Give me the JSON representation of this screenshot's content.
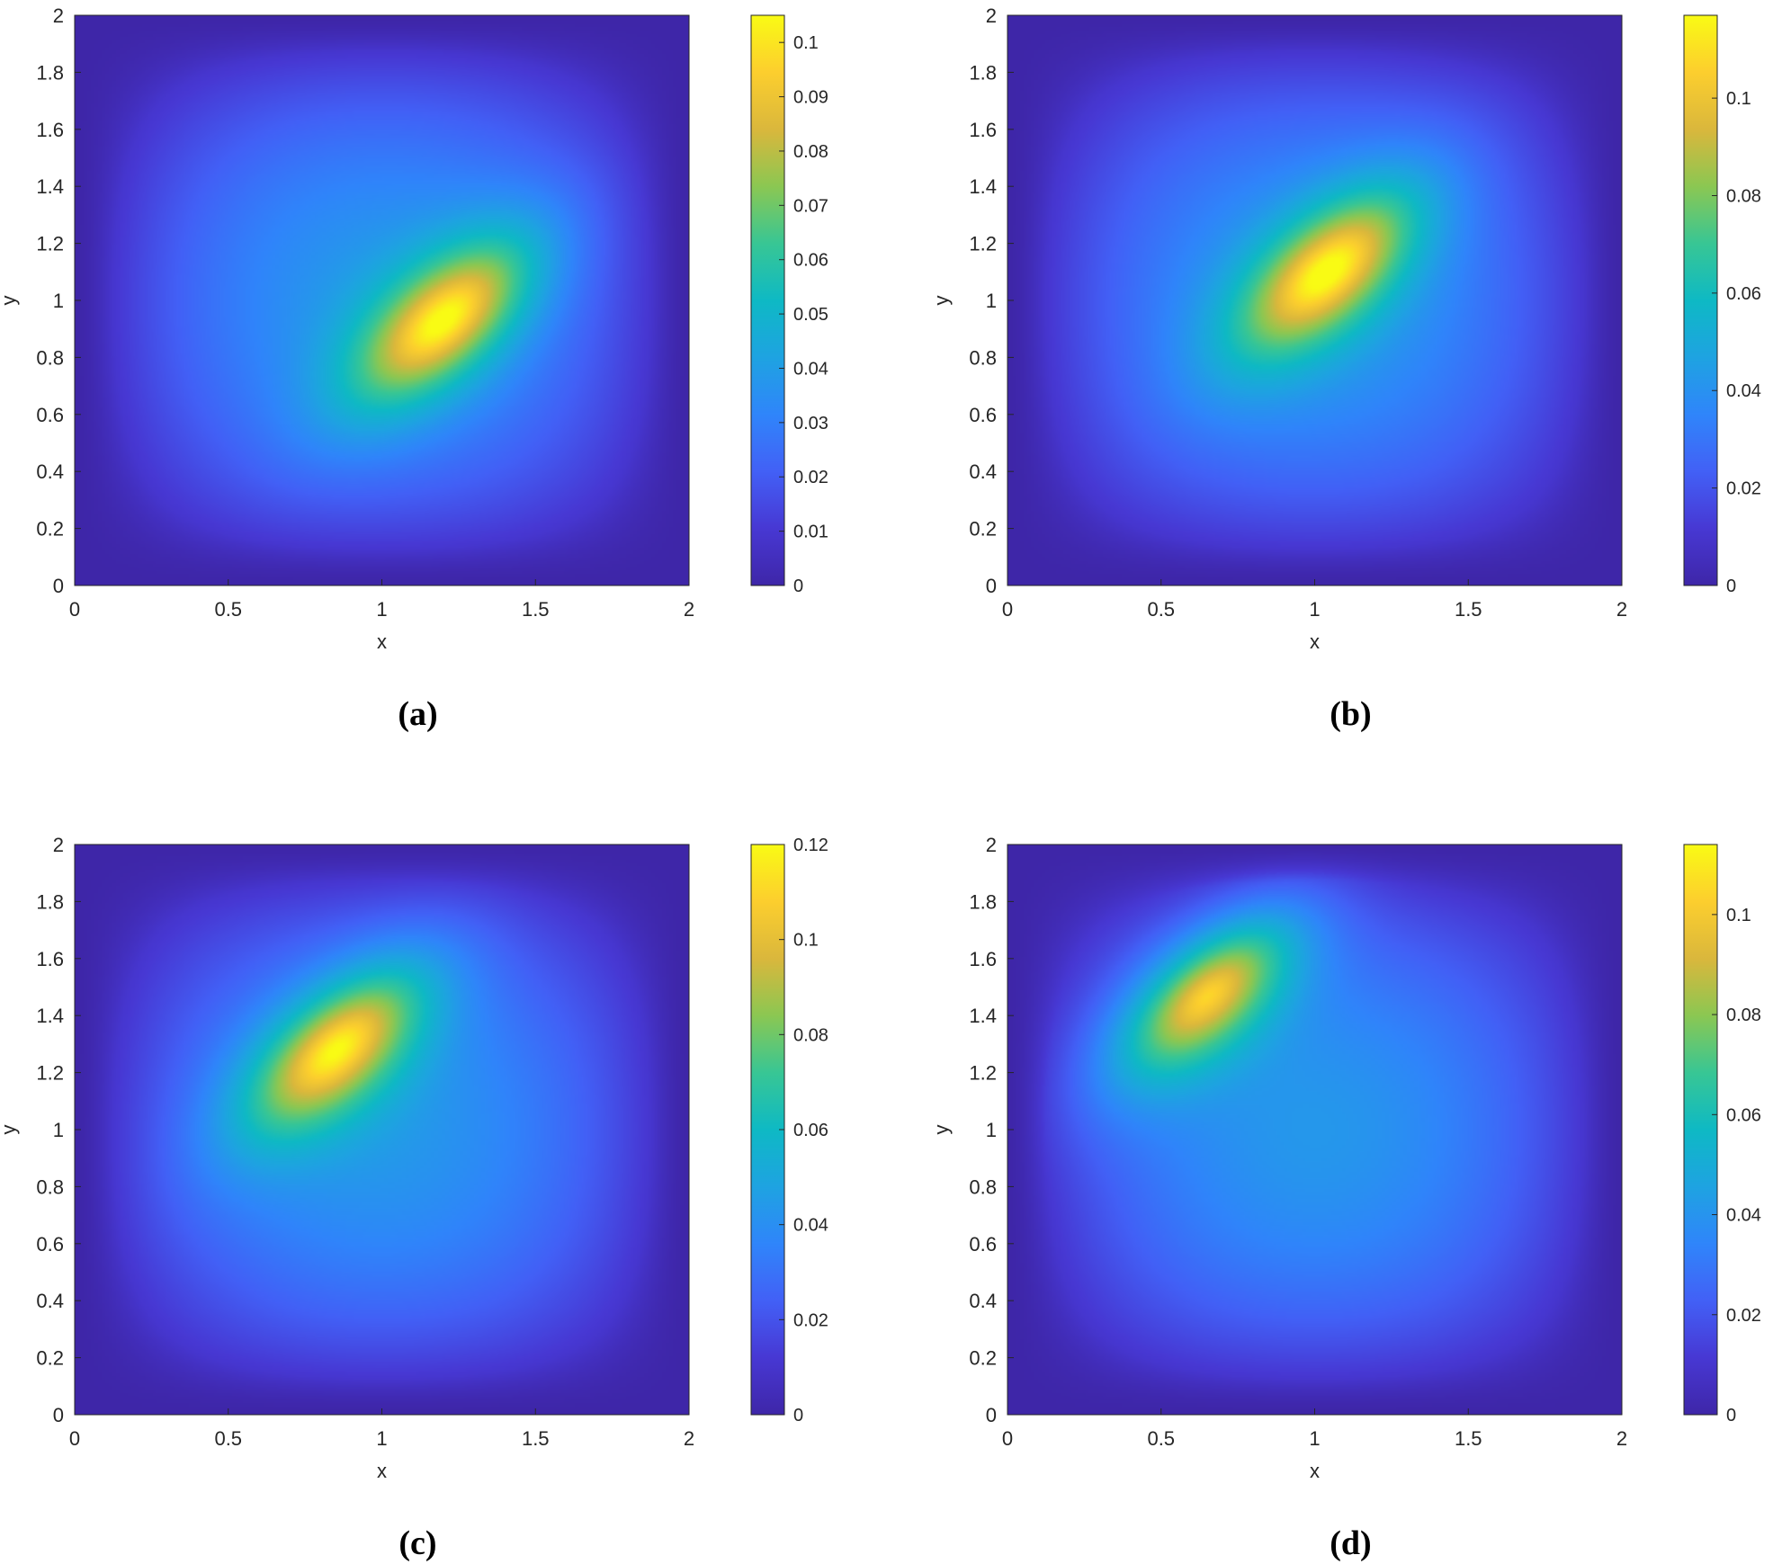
{
  "chart_data": [
    {
      "type": "heatmap",
      "caption": "(a)",
      "xlabel": "x",
      "ylabel": "y",
      "xlim": [
        0,
        2
      ],
      "ylim": [
        0,
        2
      ],
      "xticks": [
        "0",
        "0.5",
        "1",
        "1.5",
        "2"
      ],
      "yticks": [
        "0",
        "0.2",
        "0.4",
        "0.6",
        "0.8",
        "1",
        "1.2",
        "1.4",
        "1.6",
        "1.8",
        "2"
      ],
      "colormap": "parula",
      "colorbar": {
        "range": [
          0,
          0.105
        ],
        "ticks": [
          0,
          0.01,
          0.02,
          0.03,
          0.04,
          0.05,
          0.06,
          0.07,
          0.08,
          0.09,
          0.1
        ],
        "tick_labels": [
          "0",
          "0.01",
          "0.02",
          "0.03",
          "0.04",
          "0.05",
          "0.06",
          "0.07",
          "0.08",
          "0.09",
          "0.1"
        ]
      },
      "peak": {
        "x": 1.2,
        "y": 0.93,
        "value": 0.105
      }
    },
    {
      "type": "heatmap",
      "caption": "(b)",
      "xlabel": "x",
      "ylabel": "y",
      "xlim": [
        0,
        2
      ],
      "ylim": [
        0,
        2
      ],
      "xticks": [
        "0",
        "0.5",
        "1",
        "1.5",
        "2"
      ],
      "yticks": [
        "0",
        "0.2",
        "0.4",
        "0.6",
        "0.8",
        "1",
        "1.2",
        "1.4",
        "1.6",
        "1.8",
        "2"
      ],
      "colormap": "parula",
      "colorbar": {
        "range": [
          0,
          0.117
        ],
        "ticks": [
          0,
          0.02,
          0.04,
          0.06,
          0.08,
          0.1
        ],
        "tick_labels": [
          "0",
          "0.02",
          "0.04",
          "0.06",
          "0.08",
          "0.1"
        ]
      },
      "peak": {
        "x": 1.04,
        "y": 1.1,
        "value": 0.117
      }
    },
    {
      "type": "heatmap",
      "caption": "(c)",
      "xlabel": "x",
      "ylabel": "y",
      "xlim": [
        0,
        2
      ],
      "ylim": [
        0,
        2
      ],
      "xticks": [
        "0",
        "0.5",
        "1",
        "1.5",
        "2"
      ],
      "yticks": [
        "0",
        "0.2",
        "0.4",
        "0.6",
        "0.8",
        "1",
        "1.2",
        "1.4",
        "1.6",
        "1.8",
        "2"
      ],
      "colormap": "parula",
      "colorbar": {
        "range": [
          0,
          0.12
        ],
        "ticks": [
          0,
          0.02,
          0.04,
          0.06,
          0.08,
          0.1,
          0.12
        ],
        "tick_labels": [
          "0",
          "0.02",
          "0.04",
          "0.06",
          "0.08",
          "0.1",
          "0.12"
        ]
      },
      "peak": {
        "x": 0.85,
        "y": 1.28,
        "value": 0.12
      }
    },
    {
      "type": "heatmap",
      "caption": "(d)",
      "xlabel": "x",
      "ylabel": "y",
      "xlim": [
        0,
        2
      ],
      "ylim": [
        0,
        2
      ],
      "xticks": [
        "0",
        "0.5",
        "1",
        "1.5",
        "2"
      ],
      "yticks": [
        "0",
        "0.2",
        "0.4",
        "0.6",
        "0.8",
        "1",
        "1.2",
        "1.4",
        "1.6",
        "1.8",
        "2"
      ],
      "colormap": "parula",
      "colorbar": {
        "range": [
          0,
          0.114
        ],
        "ticks": [
          0,
          0.02,
          0.04,
          0.06,
          0.08,
          0.1
        ],
        "tick_labels": [
          "0",
          "0.02",
          "0.04",
          "0.06",
          "0.08",
          "0.1"
        ]
      },
      "peak": {
        "x": 0.65,
        "y": 1.47,
        "value": 0.114
      }
    }
  ]
}
